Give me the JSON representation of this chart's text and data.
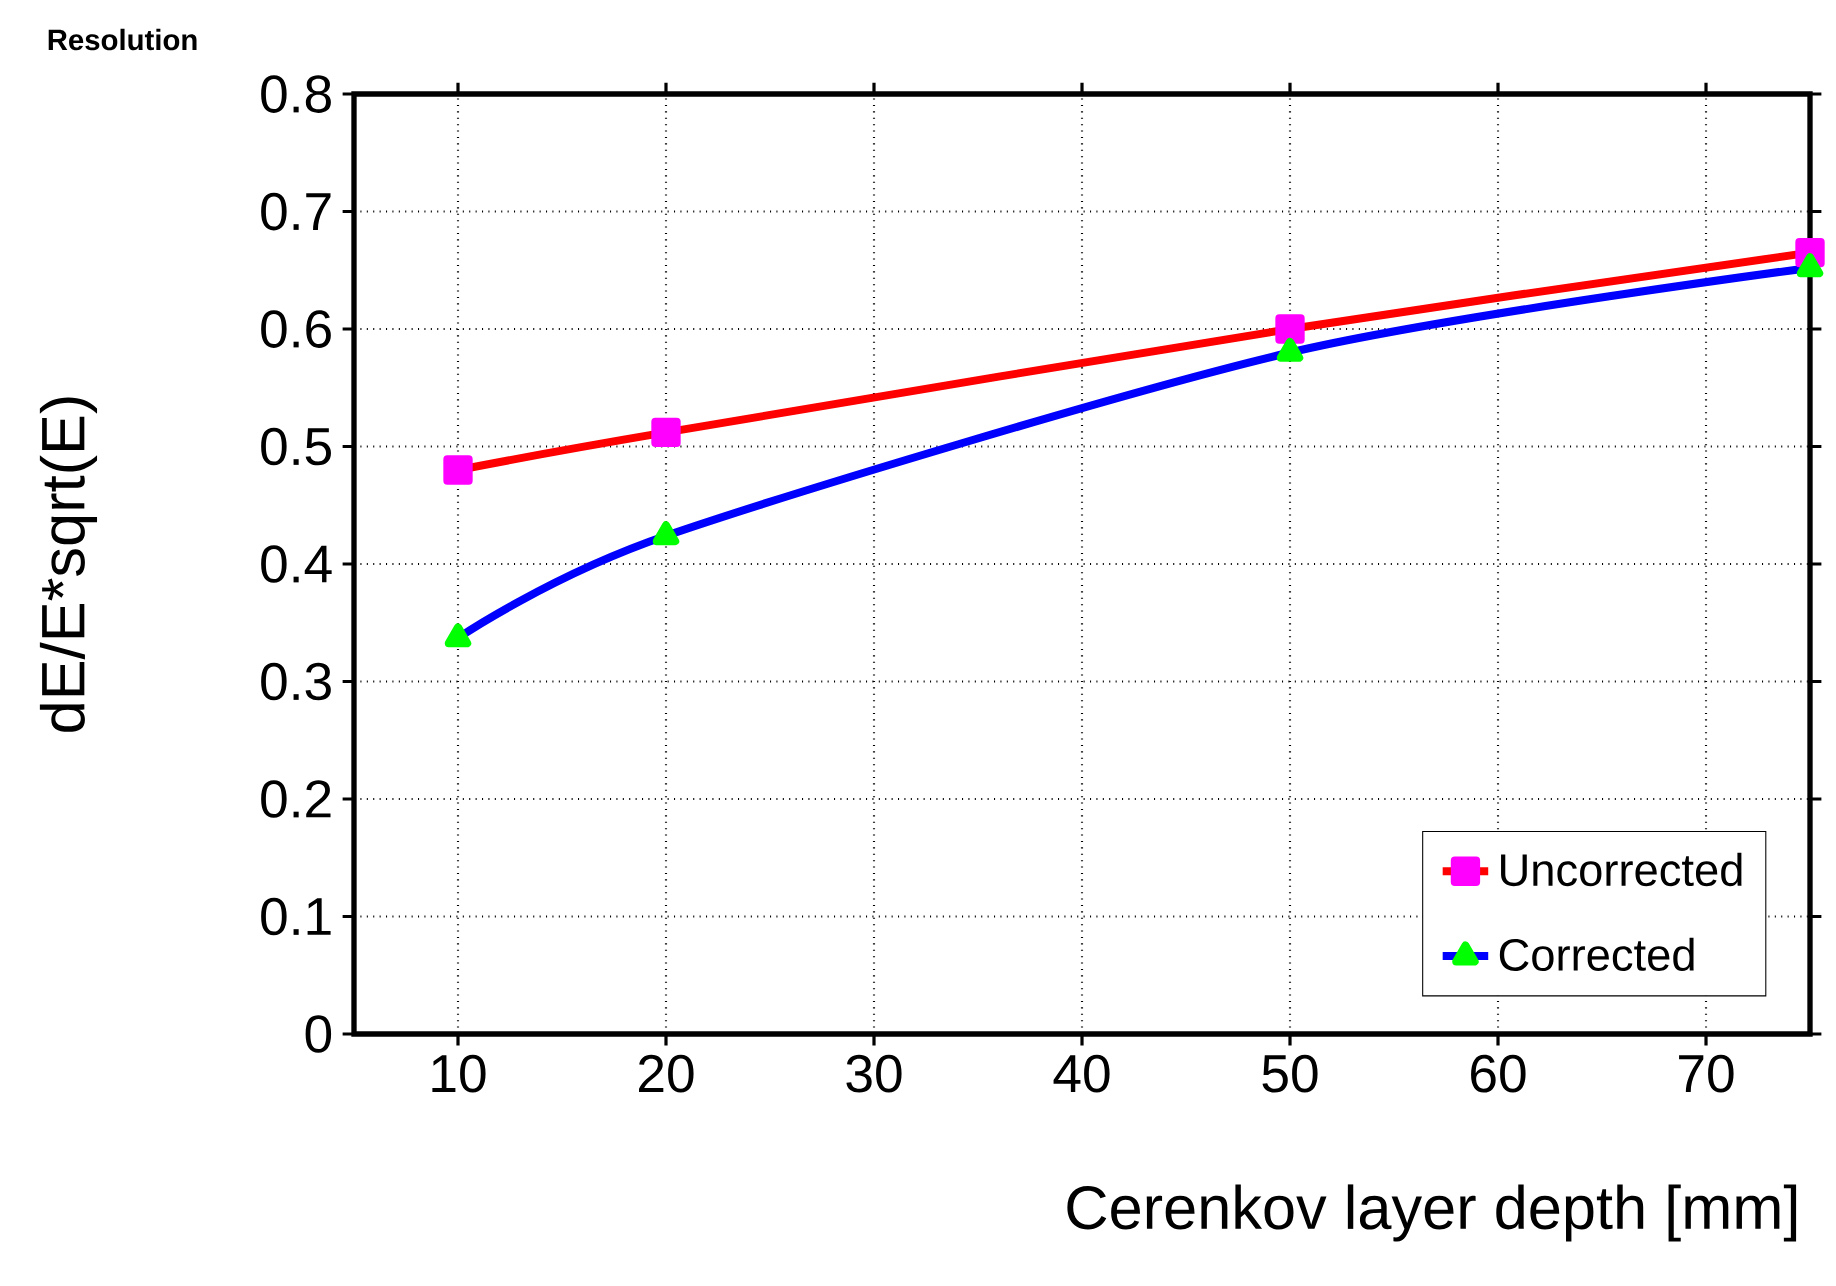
{
  "chart_data": {
    "type": "line",
    "title": "Resolution",
    "xlabel": "Cerenkov layer depth [mm]",
    "ylabel": "dE/E*sqrt(E)",
    "x": [
      10,
      20,
      50,
      75
    ],
    "series": [
      {
        "name": "Uncorrected",
        "color": "#ff0000",
        "marker": "square",
        "values": [
          0.48,
          0.512,
          0.6,
          0.665
        ]
      },
      {
        "name": "Corrected",
        "color": "#0000ff",
        "marker": "triangle",
        "values": [
          0.337,
          0.424,
          0.58,
          0.652
        ]
      }
    ],
    "xlim": [
      5,
      75
    ],
    "xticks": [
      10,
      20,
      30,
      40,
      50,
      60,
      70
    ],
    "ylim": [
      0,
      0.8
    ],
    "yticks": [
      0,
      0.1,
      0.2,
      0.3,
      0.4,
      0.5,
      0.6,
      0.7,
      0.8
    ],
    "grid": true,
    "legend": "bottom right",
    "line_style": "solid"
  }
}
